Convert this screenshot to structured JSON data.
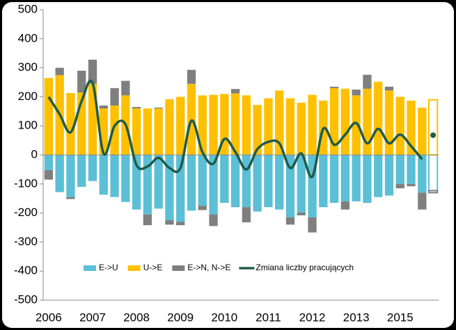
{
  "chart_data": {
    "type": "bar-line",
    "categories": [
      "2006",
      null,
      null,
      null,
      "2007",
      null,
      null,
      null,
      "2008",
      null,
      null,
      null,
      "2009",
      null,
      null,
      null,
      "2010",
      null,
      null,
      null,
      "2011",
      null,
      null,
      null,
      "2012",
      null,
      null,
      null,
      "2013",
      null,
      null,
      null,
      "2015",
      null,
      null,
      null
    ],
    "series": [
      {
        "name": "E->U",
        "color": "#5bbfd6",
        "type": "bar",
        "values": [
          -52,
          -128,
          -145,
          -110,
          -90,
          -137,
          -145,
          -162,
          -188,
          -205,
          -185,
          -225,
          -230,
          -192,
          -175,
          -205,
          -165,
          -180,
          -180,
          -195,
          -180,
          -188,
          -215,
          -198,
          -215,
          -180,
          -165,
          -160,
          -160,
          -165,
          -145,
          -140,
          -100,
          -100,
          -130,
          -123
        ]
      },
      {
        "name": "U->E",
        "color": "#ffc000",
        "type": "bar",
        "values": [
          265,
          275,
          213,
          215,
          245,
          160,
          170,
          205,
          160,
          160,
          160,
          192,
          200,
          245,
          205,
          207,
          210,
          212,
          205,
          172,
          195,
          222,
          195,
          180,
          207,
          187,
          230,
          228,
          205,
          228,
          252,
          222,
          200,
          187,
          163,
          190
        ]
      },
      {
        "name": "E->N, N->E",
        "color": "#7f7f7f",
        "type": "bar",
        "values": [
          -33,
          25,
          -7,
          75,
          83,
          10,
          60,
          50,
          5,
          -37,
          3,
          -15,
          -12,
          48,
          -15,
          -40,
          0,
          15,
          -52,
          0,
          0,
          0,
          -25,
          -10,
          -52,
          0,
          5,
          -28,
          20,
          48,
          0,
          13,
          -15,
          -8,
          -58,
          -7
        ]
      },
      {
        "name": "Zmiana liczby pracujących",
        "color": "#1e5b4a",
        "type": "line",
        "values": [
          200,
          140,
          78,
          185,
          248,
          5,
          100,
          105,
          -35,
          -40,
          -10,
          -45,
          -45,
          118,
          10,
          -30,
          55,
          10,
          -50,
          20,
          45,
          40,
          -45,
          5,
          -75,
          90,
          35,
          70,
          110,
          40,
          90,
          40,
          70,
          30,
          -15,
          68
        ]
      }
    ],
    "last_point_forecast": true,
    "ylim": [
      -500,
      500
    ],
    "yticks": [
      -500,
      -400,
      -300,
      -200,
      -100,
      0,
      100,
      200,
      300,
      400,
      500
    ]
  }
}
